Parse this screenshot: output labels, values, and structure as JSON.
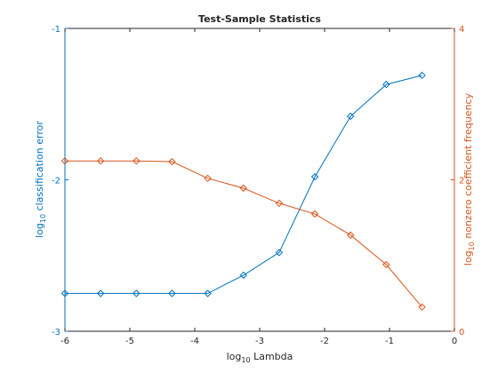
{
  "chart_data": {
    "type": "line",
    "title": "Test-Sample Statistics",
    "xlabel": "log10 Lambda",
    "xlim": [
      -6,
      0
    ],
    "xticks": [
      -6,
      -5,
      -4,
      -3,
      -2,
      -1,
      0
    ],
    "left_axis": {
      "ylabel": "log10 classification error",
      "ylim": [
        -3,
        -1
      ],
      "yticks": [
        -3,
        -2,
        -1
      ],
      "color": "#0072bd"
    },
    "right_axis": {
      "ylabel": "log10 nonzero coefficient frequency",
      "ylim": [
        0,
        4
      ],
      "yticks": [
        0,
        2,
        4
      ],
      "color": "#d95319"
    },
    "x": [
      -6.0,
      -5.45,
      -4.9,
      -4.35,
      -3.8,
      -3.25,
      -2.7,
      -2.15,
      -1.6,
      -1.05,
      -0.5
    ],
    "series": [
      {
        "axis": "left",
        "marker": "diamond",
        "color": "#0072bd",
        "values": [
          -2.75,
          -2.75,
          -2.75,
          -2.75,
          -2.75,
          -2.63,
          -2.48,
          -1.98,
          -1.58,
          -1.37,
          -1.31
        ]
      },
      {
        "axis": "right",
        "marker": "diamond",
        "color": "#d95319",
        "values": [
          2.25,
          2.25,
          2.25,
          2.24,
          2.02,
          1.89,
          1.69,
          1.55,
          1.27,
          0.88,
          0.32
        ]
      }
    ],
    "grid": false,
    "legend": "none"
  }
}
